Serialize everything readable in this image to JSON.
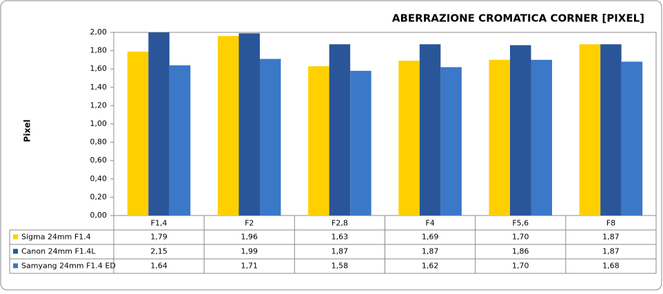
{
  "chart_data": {
    "type": "bar",
    "title": "ABERRAZIONE CROMATICA CORNER [PIXEL]",
    "y_label": "Pixel",
    "categories": [
      "F1,4",
      "F2",
      "F2,8",
      "F4",
      "F5,6",
      "F8"
    ],
    "series": [
      {
        "name": "Sigma 24mm F1.4",
        "color": "#ffd000",
        "values": [
          1.79,
          1.96,
          1.63,
          1.69,
          1.7,
          1.87
        ],
        "value_labels": [
          "1,79",
          "1,96",
          "1,63",
          "1,69",
          "1,70",
          "1,87"
        ]
      },
      {
        "name": "Canon 24mm F1.4L",
        "color": "#2a5699",
        "values": [
          2.15,
          1.99,
          1.87,
          1.87,
          1.86,
          1.87
        ],
        "value_labels": [
          "2,15",
          "1,99",
          "1,87",
          "1,87",
          "1,86",
          "1,87"
        ]
      },
      {
        "name": "Samyang 24mm F1.4 ED",
        "color": "#3b78c8",
        "values": [
          1.64,
          1.71,
          1.58,
          1.62,
          1.7,
          1.68
        ],
        "value_labels": [
          "1,64",
          "1,71",
          "1,58",
          "1,62",
          "1,70",
          "1,68"
        ]
      }
    ],
    "ylim": [
      0,
      2
    ],
    "yticks": [
      {
        "value": 0,
        "label": "0,00"
      },
      {
        "value": 0.2,
        "label": "0,20"
      },
      {
        "value": 0.4,
        "label": "0,40"
      },
      {
        "value": 0.6,
        "label": "0,60"
      },
      {
        "value": 0.8,
        "label": "0,80"
      },
      {
        "value": 1,
        "label": "1,00"
      },
      {
        "value": 1.2,
        "label": "1,20"
      },
      {
        "value": 1.4,
        "label": "1,40"
      },
      {
        "value": 1.6,
        "label": "1,60"
      },
      {
        "value": 1.8,
        "label": "1,80"
      },
      {
        "value": 2,
        "label": "2,00"
      }
    ],
    "grid": false
  }
}
